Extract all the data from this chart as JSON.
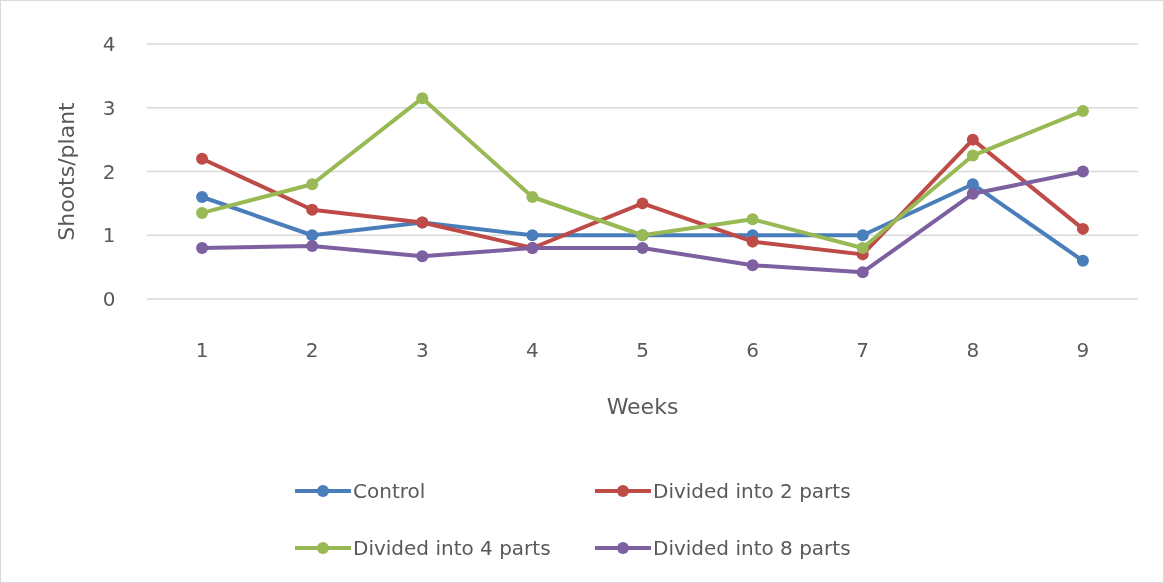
{
  "chart_data": {
    "type": "line",
    "xlabel": "Weeks",
    "ylabel": "Shoots/plant",
    "categories": [
      "1",
      "2",
      "3",
      "4",
      "5",
      "6",
      "7",
      "8",
      "9"
    ],
    "series": [
      {
        "name": "Control",
        "color": "#4a7ebb",
        "values": [
          1.6,
          1.0,
          1.2,
          1.0,
          1.0,
          1.0,
          1.0,
          1.8,
          0.6
        ]
      },
      {
        "name": "Divided into 2 parts",
        "color": "#be4b48",
        "values": [
          2.2,
          1.4,
          1.2,
          0.8,
          1.5,
          0.9,
          0.7,
          2.5,
          1.1
        ]
      },
      {
        "name": "Divided into 4 parts",
        "color": "#98b954",
        "values": [
          1.35,
          1.8,
          3.15,
          1.6,
          1.0,
          1.25,
          0.8,
          2.25,
          2.95
        ]
      },
      {
        "name": "Divided into 8 parts",
        "color": "#7d60a0",
        "values": [
          0.8,
          0.83,
          0.67,
          0.8,
          0.8,
          0.53,
          0.42,
          1.65,
          2.0
        ]
      }
    ],
    "ylim": [
      0,
      4
    ],
    "yticks": [
      0,
      1,
      2,
      3,
      4
    ],
    "grid": "y",
    "legend": "bottom",
    "marker": "circle",
    "line_style": "solid"
  }
}
